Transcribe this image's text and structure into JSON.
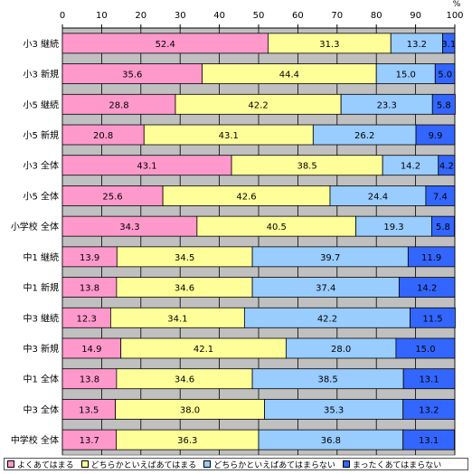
{
  "chart_data": {
    "type": "bar",
    "orientation": "horizontal",
    "stacked": true,
    "unit": "%",
    "xlim": [
      0,
      100
    ],
    "x_ticks": [
      0,
      10,
      20,
      30,
      40,
      50,
      60,
      70,
      80,
      90,
      100
    ],
    "grid": true,
    "categories": [
      "小3  継続",
      "小3  新規",
      "小5  継続",
      "小5  新規",
      "小3  全体",
      "小5  全体",
      "小学校  全体",
      "中1  継続",
      "中1  新規",
      "中3  継続",
      "中3  新規",
      "中1  全体",
      "中3  全体",
      "中学校  全体"
    ],
    "series": [
      {
        "name": "よくあてはまる",
        "color": "#ff99cc",
        "values": [
          52.4,
          35.6,
          28.8,
          20.8,
          43.1,
          25.6,
          34.3,
          13.9,
          13.8,
          12.3,
          14.9,
          13.8,
          13.5,
          13.7
        ]
      },
      {
        "name": "どちらかといえばあてはまる",
        "color": "#ffff99",
        "values": [
          31.3,
          44.4,
          42.2,
          43.1,
          38.5,
          42.6,
          40.5,
          34.5,
          34.6,
          34.1,
          42.1,
          34.6,
          38.0,
          36.3
        ]
      },
      {
        "name": "どちらかといえばあてはまらない",
        "color": "#99ccff",
        "values": [
          13.2,
          15.0,
          23.3,
          26.2,
          14.2,
          24.4,
          19.3,
          39.7,
          37.4,
          42.2,
          28.0,
          38.5,
          35.3,
          36.8
        ]
      },
      {
        "name": "まったくあてはまらない",
        "color": "#3366ff",
        "values": [
          3.1,
          5.0,
          5.8,
          9.9,
          4.2,
          7.4,
          5.8,
          11.9,
          14.2,
          11.5,
          15.0,
          13.1,
          13.2,
          13.1
        ]
      }
    ],
    "legend_position": "bottom",
    "plot_background": "#c0c0c0"
  }
}
